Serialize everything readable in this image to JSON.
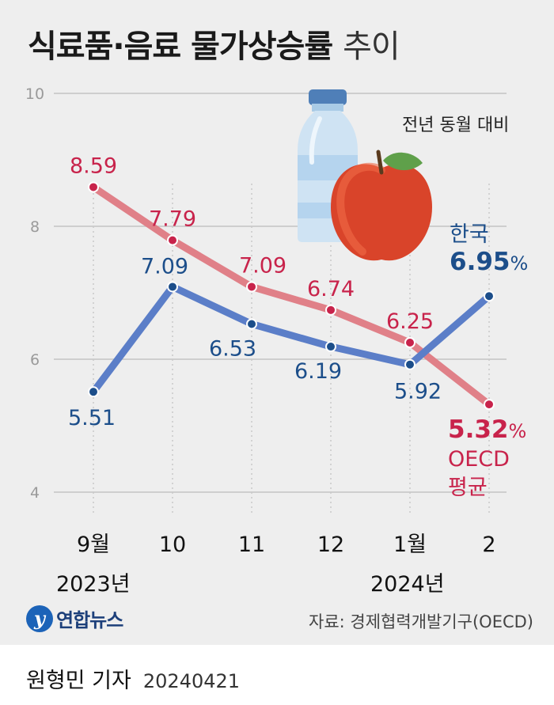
{
  "title": {
    "main": "식료품·음료 물가상승률",
    "suffix": "추이"
  },
  "unit_note": "전년 동월 대비",
  "chart_data": {
    "type": "line",
    "categories": [
      "9월",
      "10",
      "11",
      "12",
      "1월",
      "2"
    ],
    "year_labels": [
      "2023년",
      "2024년"
    ],
    "ylim": [
      4,
      10
    ],
    "yticks": [
      4,
      6,
      8,
      10
    ],
    "grid": "horizontal",
    "series": [
      {
        "name": "OECD 평균",
        "color": "#e08088",
        "point_color": "#c8234b",
        "label_color": "#c8234b",
        "values": [
          8.59,
          7.79,
          7.09,
          6.74,
          6.25,
          5.32
        ],
        "labels": [
          "8.59",
          "7.79",
          "7.09",
          "6.74",
          "6.25",
          ""
        ]
      },
      {
        "name": "한국",
        "color": "#5b7ec8",
        "point_color": "#1c4e8a",
        "label_color": "#1c4e8a",
        "values": [
          5.51,
          7.09,
          6.53,
          6.19,
          5.92,
          6.95
        ],
        "labels": [
          "5.51",
          "7.09",
          "6.53",
          "6.19",
          "5.92",
          ""
        ]
      }
    ]
  },
  "legend": {
    "korea": {
      "label": "한국",
      "value": "6.95",
      "pct": "%"
    },
    "oecd": {
      "value": "5.32",
      "pct": "%",
      "line1": "OECD",
      "line2": "평균"
    }
  },
  "footer": {
    "logo_text": "연합뉴스",
    "logo_mark": "y",
    "source": "자료: 경제협력개발기구(OECD)",
    "reporter": "원형민 기자",
    "date": "20240421"
  },
  "icons": [
    "water-bottle-icon",
    "apple-icon"
  ]
}
